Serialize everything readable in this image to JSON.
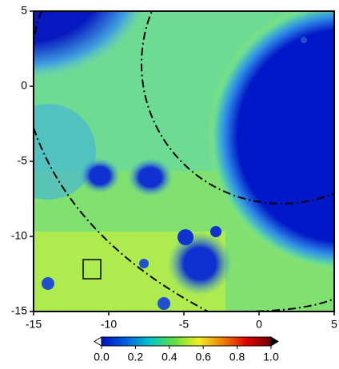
{
  "chart_data": {
    "type": "heatmap",
    "xlim": [
      -15,
      5
    ],
    "ylim": [
      -15,
      5
    ],
    "xticks": [
      -15,
      -10,
      -5,
      0,
      5
    ],
    "yticks": [
      -15,
      -10,
      -5,
      0,
      5
    ],
    "colorbar": {
      "lim": [
        0,
        1
      ],
      "ticks": [
        {
          "value": 0,
          "label": "0.0"
        },
        {
          "value": 0.2,
          "label": "0.2"
        },
        {
          "value": 0.4,
          "label": "0.4"
        },
        {
          "value": 0.6,
          "label": "0.6"
        },
        {
          "value": 0.8,
          "label": "0.8"
        },
        {
          "value": 1,
          "label": "1.0"
        }
      ],
      "colors": [
        "#0010c0",
        "#0060e0",
        "#00c8c8",
        "#60e040",
        "#f0f020",
        "#f08000",
        "#e00000",
        "#700000"
      ]
    }
  }
}
